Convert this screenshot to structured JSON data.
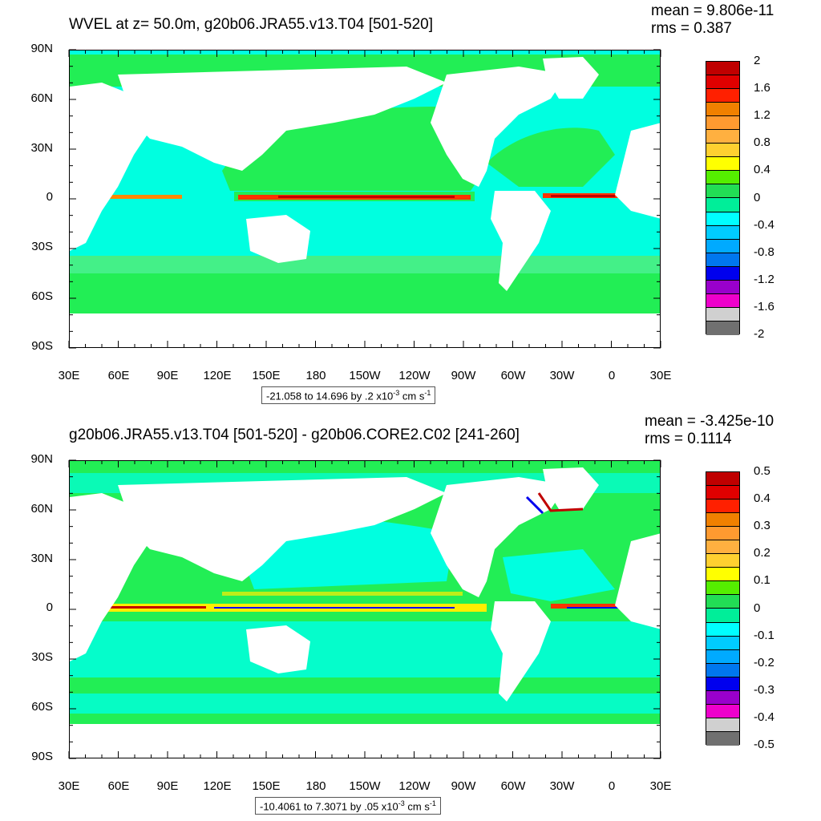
{
  "top": {
    "title": "WVEL at z=  50.0m, g20b06.JRA55.v13.T04 [501-520]",
    "mean": "mean = 9.806e-11",
    "rms": "rms = 0.387",
    "info": "-21.058 to 14.696 by .2 x10",
    "info_exp": "-3",
    "info_unit": " cm s",
    "info_unit_exp": "-1",
    "colorbar_labels": [
      "2",
      "1.6",
      "1.2",
      "0.8",
      "0.4",
      "0",
      "-0.4",
      "-0.8",
      "-1.2",
      "-1.6",
      "-2"
    ]
  },
  "bottom": {
    "title": "g20b06.JRA55.v13.T04 [501-520] - g20b06.CORE2.C02 [241-260]",
    "mean": "mean = -3.425e-10",
    "rms": "rms = 0.1114",
    "info": "-10.4061 to 7.3071 by .05 x10",
    "info_exp": "-3",
    "info_unit": " cm s",
    "info_unit_exp": "-1",
    "colorbar_labels": [
      "0.5",
      "0.4",
      "0.3",
      "0.2",
      "0.1",
      "0",
      "-0.1",
      "-0.2",
      "-0.3",
      "-0.4",
      "-0.5"
    ]
  },
  "y_axis_labels": [
    "90N",
    "60N",
    "30N",
    "0",
    "30S",
    "60S",
    "90S"
  ],
  "x_axis_labels": [
    "30E",
    "60E",
    "90E",
    "120E",
    "150E",
    "180",
    "150W",
    "120W",
    "90W",
    "60W",
    "30W",
    "0",
    "30E"
  ],
  "colorbar_colors": [
    "#c00000",
    "#e00000",
    "#ff2000",
    "#f08000",
    "#ff9a30",
    "#ffb040",
    "#ffd030",
    "#ffff00",
    "#55ee00",
    "#22dd55",
    "#00ee99",
    "#00ffff",
    "#00ccff",
    "#00aaff",
    "#0077ee",
    "#0000ee",
    "#9900cc",
    "#ee00cc",
    "#d0d0d0",
    "#707070"
  ]
}
